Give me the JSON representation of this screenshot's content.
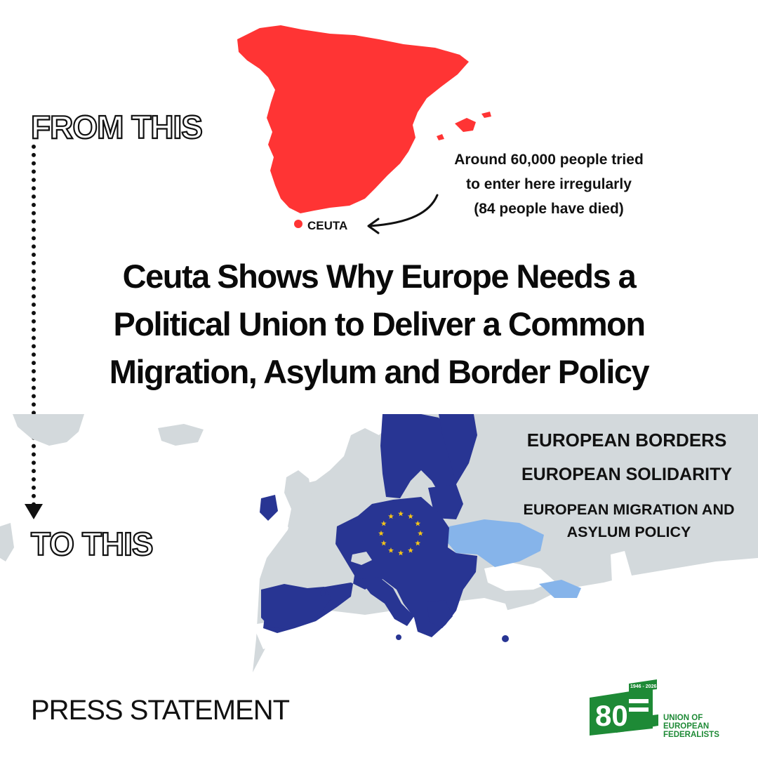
{
  "labels": {
    "from": "FROM THIS",
    "to": "TO THIS"
  },
  "spain": {
    "ceuta_label": "CEUTA",
    "stat_lines": [
      "Around 60,000 people tried",
      "to enter here irregularly",
      "(84 people have died)"
    ]
  },
  "headline": {
    "lines": [
      "Ceuta Shows Why Europe Needs a",
      "Political Union to Deliver a Common",
      "Migration, Asylum and Border Policy"
    ]
  },
  "taglines": {
    "borders": "EUROPEAN BORDERS",
    "solidarity": "EUROPEAN  SOLIDARITY",
    "migration_lines": [
      "EUROPEAN MIGRATION AND",
      "ASYLUM POLICY"
    ]
  },
  "footer": {
    "press": "PRESS STATEMENT"
  },
  "logo": {
    "number": "80",
    "years": "1946 - 2026",
    "name_lines": [
      "UNION OF",
      "EUROPEAN",
      "FEDERALISTS"
    ]
  },
  "colors": {
    "spain_red": "#ff3434",
    "eu_blue": "#283593",
    "candidate_blue": "#86b4ea",
    "land_gray": "#d3d9dc",
    "logo_green": "#1e8a36",
    "star_yellow": "#f5c518"
  },
  "icons": {
    "eu_flag_stars": "star-circle-icon",
    "pointer": "curved-arrow-icon"
  }
}
